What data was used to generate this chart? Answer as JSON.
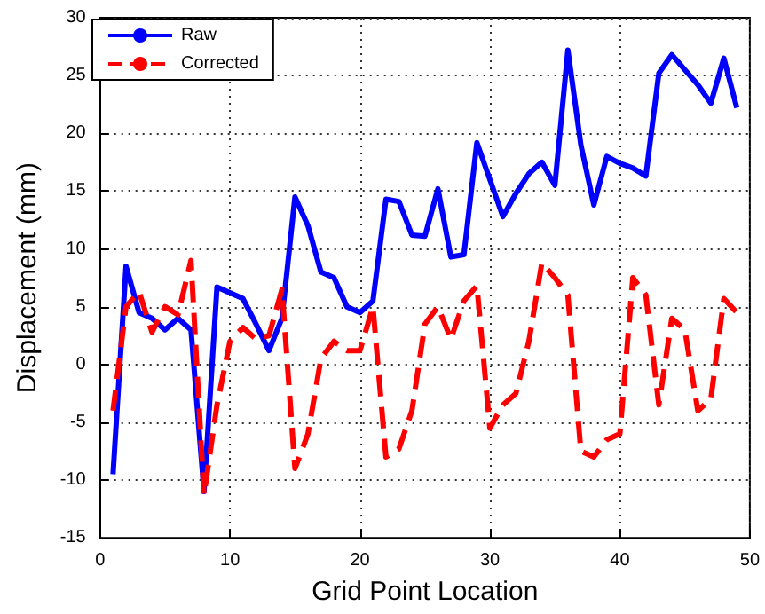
{
  "chart_data": {
    "type": "line",
    "xlabel": "Grid Point Location",
    "ylabel": "Displacement (mm)",
    "x": [
      1,
      2,
      3,
      4,
      5,
      6,
      7,
      8,
      9,
      10,
      11,
      12,
      13,
      14,
      15,
      16,
      17,
      18,
      19,
      20,
      21,
      22,
      23,
      24,
      25,
      26,
      27,
      28,
      29,
      30,
      31,
      32,
      33,
      34,
      35,
      36,
      37,
      38,
      39,
      40,
      41,
      42,
      43,
      44,
      45,
      46,
      47,
      48,
      49
    ],
    "series": [
      {
        "name": "Raw",
        "color": "#0000ff",
        "line_style": "solid",
        "values": [
          -9.5,
          8.5,
          4.5,
          4,
          3,
          4,
          3,
          -11,
          6.7,
          6.2,
          5.7,
          3.5,
          1.2,
          4,
          14.5,
          12,
          8,
          7.5,
          5,
          4.5,
          5.5,
          14.3,
          14.1,
          11.2,
          11.1,
          15.2,
          9.3,
          9.5,
          19.2,
          16,
          12.8,
          14.8,
          16.5,
          17.5,
          15.5,
          27.2,
          19,
          13.8,
          18,
          17.4,
          17,
          16.3,
          25.2,
          26.8,
          25.5,
          24.2,
          22.6,
          26.5,
          22.2
        ]
      },
      {
        "name": "Corrected",
        "color": "#ff0000",
        "line_style": "dashed",
        "values": [
          -4,
          5,
          6.3,
          2.8,
          5,
          4.3,
          9,
          -11.3,
          -3.5,
          2,
          3.2,
          2.2,
          2.5,
          6.5,
          -9,
          -6,
          0.5,
          2,
          1.2,
          1.2,
          5,
          -8,
          -7.3,
          -4,
          3.5,
          5,
          2.2,
          5.5,
          6.8,
          -5.5,
          -3.5,
          -2.5,
          2,
          8.8,
          7.5,
          6,
          -7.5,
          -8,
          -6.5,
          -6,
          7.5,
          6,
          -3.5,
          4,
          3,
          -4,
          -3,
          5.7,
          4.5
        ]
      }
    ],
    "xlim": [
      0,
      50
    ],
    "xticks": [
      0,
      10,
      20,
      30,
      40,
      50
    ],
    "ylim": [
      -15,
      30
    ],
    "yticks": [
      -15,
      -10,
      -5,
      0,
      5,
      10,
      15,
      20,
      25,
      30
    ],
    "grid": true,
    "legend": "top left",
    "marker": "none"
  }
}
